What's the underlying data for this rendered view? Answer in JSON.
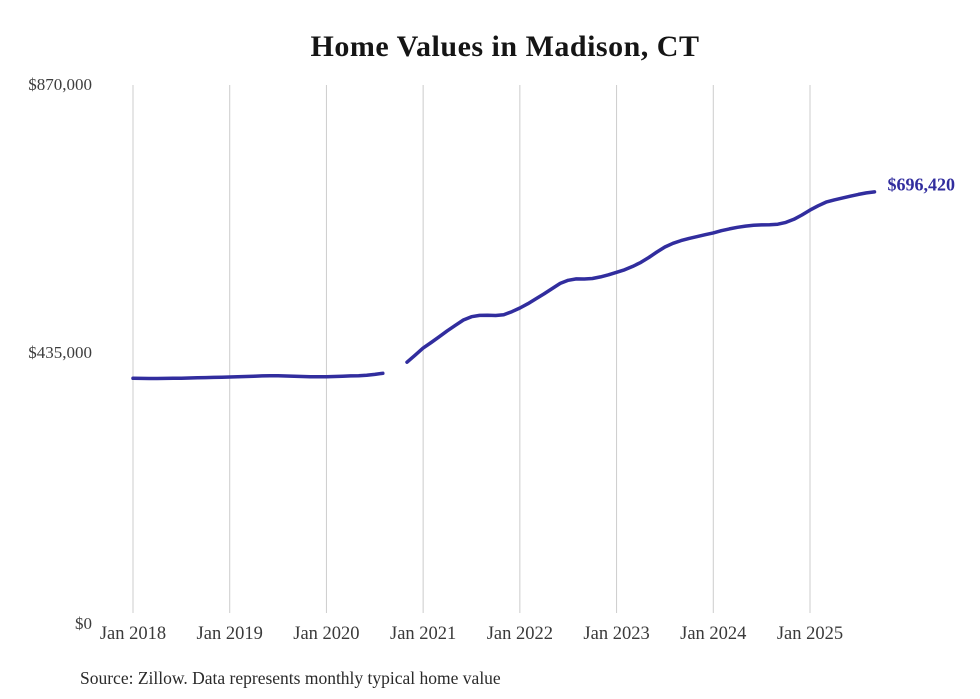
{
  "title": "Home Values in Madison, CT",
  "source_note": "Source: Zillow. Data represents monthly typical home value",
  "end_label": "$696,420",
  "colors": {
    "line": "#312d9e",
    "end_label": "#312d9e",
    "grid": "#cccccc",
    "tick_text": "#3d3d3d",
    "title_text": "#151515",
    "background": "#ffffff"
  },
  "chart_data": {
    "type": "line",
    "title": "Home Values in Madison, CT",
    "xlabel": "",
    "ylabel": "",
    "ylim": [
      0,
      870000
    ],
    "y_ticks": [
      0,
      435000,
      870000
    ],
    "y_tick_labels": [
      "$0",
      "$435,000",
      "$870,000"
    ],
    "x_tick_labels": [
      "Jan 2018",
      "Jan 2019",
      "Jan 2020",
      "Jan 2021",
      "Jan 2022",
      "Jan 2023",
      "Jan 2024",
      "Jan 2025"
    ],
    "x_monthly_start": "2018-01",
    "grid": "vertical-only",
    "legend": "none",
    "gap_months": [
      "2020-09",
      "2020-10"
    ],
    "end_value": 696420,
    "series": [
      {
        "name": "Monthly typical home value",
        "values": [
          394000,
          393800,
          393600,
          393600,
          393800,
          394000,
          394100,
          394400,
          394800,
          395100,
          395400,
          395700,
          396000,
          396400,
          396900,
          397400,
          397800,
          398000,
          398000,
          397700,
          397200,
          396800,
          396600,
          396500,
          396600,
          396900,
          397400,
          397900,
          398200,
          398800,
          400200,
          402000,
          null,
          null,
          420000,
          431500,
          443000,
          452000,
          461500,
          471000,
          480000,
          488500,
          494000,
          496000,
          496300,
          495800,
          497000,
          502000,
          508000,
          515000,
          523000,
          531000,
          539500,
          548000,
          553000,
          555200,
          555100,
          556000,
          558500,
          562000,
          566000,
          570000,
          575500,
          582000,
          590000,
          599000,
          607000,
          613000,
          617500,
          621000,
          624000,
          627000,
          630000,
          633500,
          636500,
          639000,
          641000,
          642200,
          643000,
          643200,
          644000,
          647000,
          652000,
          659000,
          667000,
          674000,
          680000,
          683500,
          686500,
          689500,
          692500,
          694800,
          696420
        ]
      }
    ]
  }
}
